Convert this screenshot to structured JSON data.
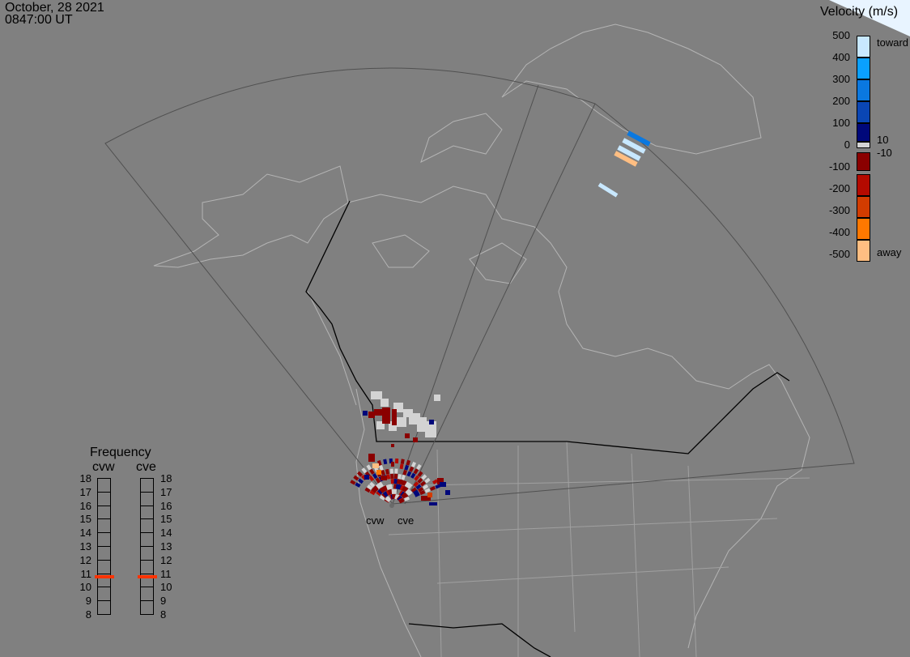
{
  "header": {
    "date": "October, 28 2021",
    "time": "0847:00 UT"
  },
  "radars": [
    {
      "code": "cvw"
    },
    {
      "code": "cve"
    }
  ],
  "colorbar": {
    "title": "Velocity (m/s)",
    "ticks": [
      "500",
      "400",
      "300",
      "200",
      "100",
      "0",
      "-100",
      "-200",
      "-300",
      "-400",
      "-500"
    ],
    "toward_label": "toward",
    "away_label": "away",
    "ground_scatter_upper": "10",
    "ground_scatter_lower": "-10",
    "colors": [
      "#c8e8ff",
      "#0aa0ff",
      "#0a78e0",
      "#0a46b4",
      "#00087a",
      "#8a0000",
      "#b40a00",
      "#d23c00",
      "#ff7800",
      "#ffbe82"
    ],
    "ground_scatter_color": "#d3d3d3"
  },
  "frequency": {
    "title": "Frequency",
    "unit_ticks": [
      "18",
      "17",
      "16",
      "15",
      "14",
      "13",
      "12",
      "11",
      "10",
      "9",
      "8"
    ],
    "values_mhz": {
      "cvw": 10.75,
      "cve": 10.75
    },
    "marker_color": "#ff3300"
  }
}
